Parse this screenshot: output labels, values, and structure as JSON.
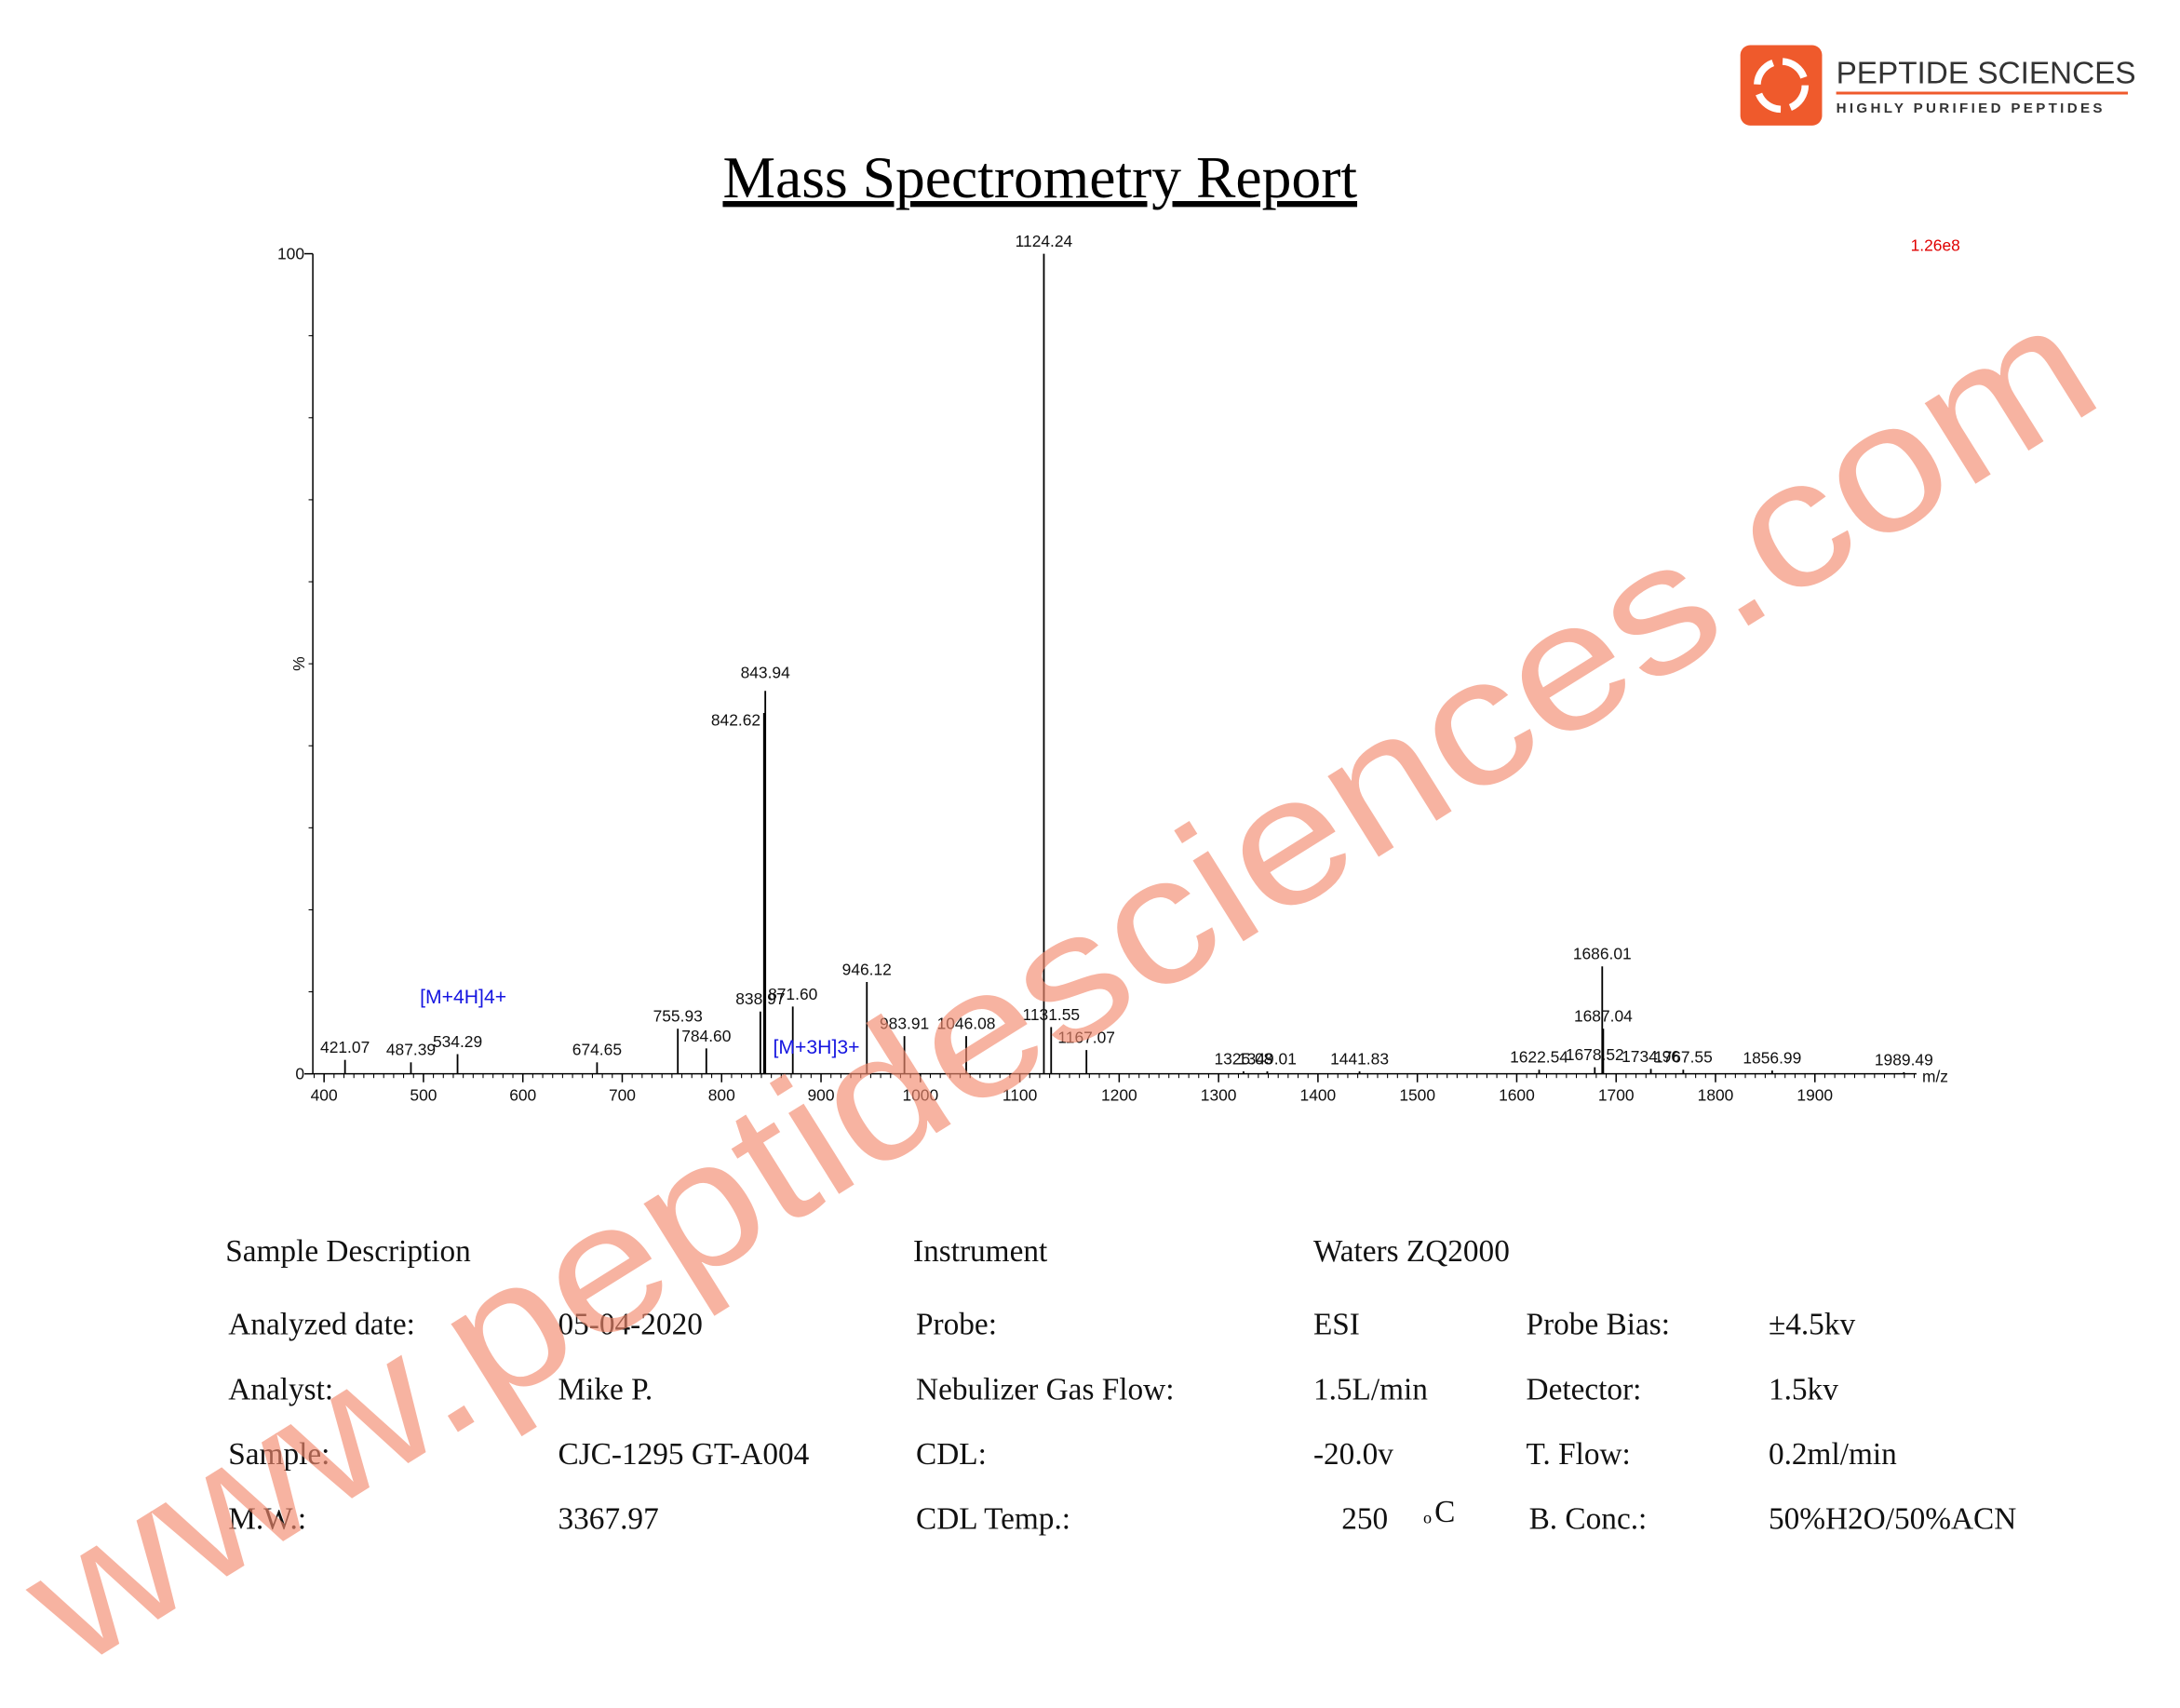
{
  "logo": {
    "name": "PEPTIDE SCIENCES",
    "tagline": "HIGHLY PURIFIED PEPTIDES"
  },
  "title": "Mass Spectrometry Report",
  "watermark": "www.peptidesciences.com",
  "chart_data": {
    "type": "spectrum",
    "y_label": "%",
    "x_label": "m/z",
    "scale_label": "1.26e8",
    "annotations": [
      {
        "text": "[M+3H]3+",
        "peak": 6
      },
      {
        "text": "[M+4H]4+",
        "peak": 2
      }
    ],
    "x": [
      421.07,
      487.39,
      534.29,
      674.65,
      755.93,
      784.6,
      838.97,
      842.62,
      843.94,
      871.6,
      946.12,
      983.91,
      1046.08,
      1124.24,
      1131.55,
      1167.07,
      1325.08,
      1349.01,
      1441.83,
      1622.54,
      1678.52,
      1686.01,
      1687.04,
      1734.96,
      1767.55,
      1856.99,
      1989.49
    ],
    "peak_labels": [
      "421.07",
      "487.39",
      "534.29",
      "674.65",
      "755.93",
      "784.60",
      "838.97",
      "842.62",
      "843.94",
      "871.60",
      "946.12",
      "983.91",
      "1046.08",
      "1124.24",
      "1131.55",
      "1167.07",
      "1325.08",
      "1349.01",
      "1441.83",
      "1622.54",
      "1678.52",
      "1686.01",
      "1687.04",
      "1734.96",
      "1767.55",
      "1856.99",
      "1989.49"
    ],
    "values": [
      1.7,
      1.4,
      2.4,
      1.4,
      5.5,
      3.1,
      7.6,
      44,
      46.7,
      8.2,
      11.2,
      4.6,
      4.6,
      100,
      5.7,
      2.9,
      0.3,
      0.3,
      0.3,
      0.5,
      0.8,
      13.1,
      5.5,
      0.6,
      0.5,
      0.4,
      0.2
    ],
    "color": "#000000",
    "xlim": [
      388.7,
      2002.2
    ],
    "xticks": [
      400,
      500,
      600,
      700,
      800,
      900,
      1000,
      1100,
      1200,
      1300,
      1400,
      1500,
      1600,
      1700,
      1800,
      1900
    ],
    "ylim": [
      0,
      100
    ],
    "yticks": [
      0,
      100
    ]
  },
  "table": {
    "header": [
      "Sample Description",
      "Instrument",
      "Waters ZQ2000"
    ],
    "rows": [
      [
        "Analyzed date:",
        "05-04-2020",
        "Probe:",
        "ESI",
        "Probe Bias:",
        "±4.5kv"
      ],
      [
        "Analyst:",
        "Mike P.",
        "Nebulizer Gas Flow:",
        "1.5L/min",
        "Detector:",
        "1.5kv"
      ],
      [
        "Sample:",
        "CJC-1295 GT-A004",
        "CDL:",
        "-20.0v",
        "T. Flow:",
        "0.2ml/min"
      ],
      [
        "M.W.:",
        "3367.97",
        "CDL Temp.:",
        "250",
        "B. Conc.:",
        "50%H2O/50%ACN"
      ]
    ],
    "degree_mark": "o",
    "degree_unit": "C"
  }
}
